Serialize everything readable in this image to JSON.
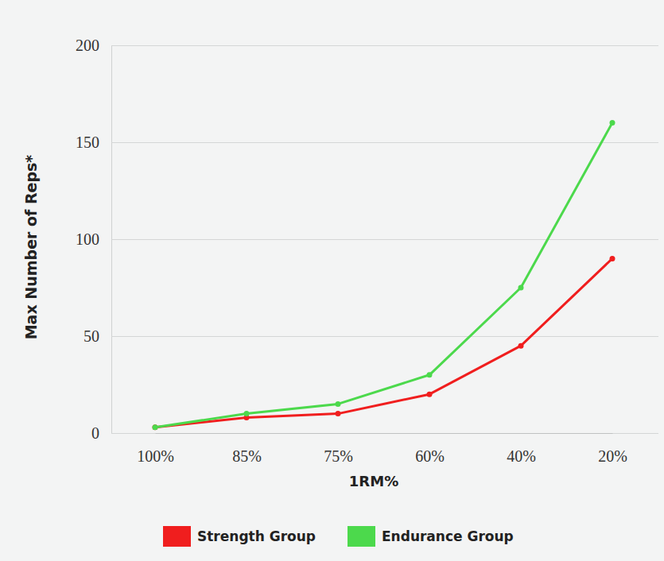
{
  "chart_data": {
    "type": "line",
    "x_label": "1RM%",
    "y_label": "Max Number of Reps*",
    "categories": [
      "100%",
      "85%",
      "75%",
      "60%",
      "40%",
      "20%"
    ],
    "series": [
      {
        "name": "Strength Group",
        "color": "#f01e1e",
        "marker": "circle",
        "values": [
          3,
          8,
          10,
          20,
          45,
          90
        ]
      },
      {
        "name": "Endurance Group",
        "color": "#4cd94c",
        "marker": "circle",
        "values": [
          3,
          10,
          15,
          30,
          75,
          160
        ]
      }
    ],
    "ylim": [
      0,
      200
    ],
    "yticks": [
      0,
      50,
      100,
      150,
      200
    ],
    "grid": true,
    "legend": "bottom"
  }
}
